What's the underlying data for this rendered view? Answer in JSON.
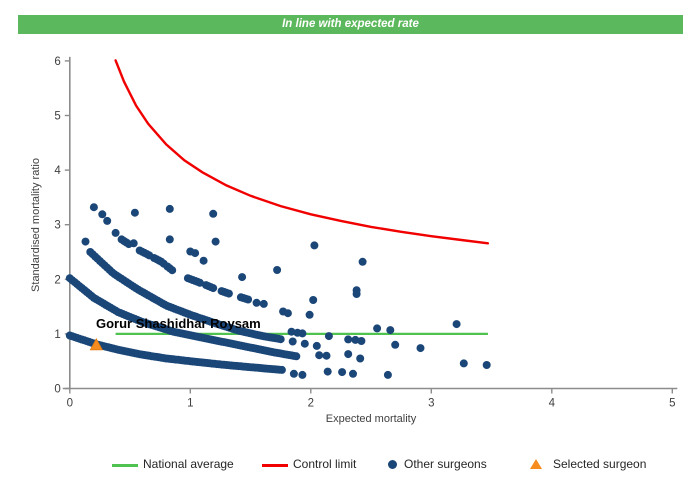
{
  "banner": {
    "text": "In line with expected rate"
  },
  "legend": {
    "items": [
      {
        "label": "National average",
        "swatch": "green-line"
      },
      {
        "label": "Control limit",
        "swatch": "red-line"
      },
      {
        "label": "Other surgeons",
        "swatch": "blue-dot"
      },
      {
        "label": "Selected surgeon",
        "swatch": "orange-triangle"
      }
    ]
  },
  "chart_data": {
    "type": "scatter",
    "title": "In line with expected rate",
    "xlabel": "Expected mortality",
    "ylabel": "Standardised mortality ratio",
    "xlim": [
      0,
      5
    ],
    "ylim": [
      0,
      6
    ],
    "xticks": [
      0,
      1,
      2,
      3,
      4,
      5
    ],
    "yticks": [
      0,
      1,
      2,
      3,
      4,
      5,
      6
    ],
    "grid": false,
    "legend_position": "bottom",
    "colors": {
      "banner_bg": "#5CB85C",
      "national_average": "#4FC24F",
      "control_limit": "#F10000",
      "other_surgeons": "#1B4678",
      "selected_surgeon": "#F68B1F",
      "axis": "#8C8C8C",
      "tick_text": "#3F3F3F"
    },
    "national_average": {
      "y": 1.0,
      "x_range": [
        0.38,
        3.47
      ]
    },
    "control_limit": {
      "x_range": [
        0.38,
        3.47
      ],
      "points": [
        [
          0.38,
          6.01
        ],
        [
          0.45,
          5.62
        ],
        [
          0.55,
          5.18
        ],
        [
          0.65,
          4.85
        ],
        [
          0.8,
          4.47
        ],
        [
          0.95,
          4.18
        ],
        [
          1.1,
          3.96
        ],
        [
          1.3,
          3.72
        ],
        [
          1.5,
          3.53
        ],
        [
          1.75,
          3.34
        ],
        [
          2.0,
          3.19
        ],
        [
          2.25,
          3.07
        ],
        [
          2.5,
          2.96
        ],
        [
          2.75,
          2.87
        ],
        [
          3.0,
          2.79
        ],
        [
          3.25,
          2.72
        ],
        [
          3.47,
          2.66
        ]
      ]
    },
    "selected_surgeon": {
      "name": "Gorur Shashidhar Roysam",
      "x": 0.22,
      "y": 0.8
    },
    "other_surgeons": {
      "bands": [
        {
          "anchors": [
            [
              0.17,
              2.5
            ],
            [
              0.36,
              2.11
            ],
            [
              0.56,
              1.82
            ],
            [
              0.8,
              1.52
            ],
            [
              1.0,
              1.35
            ],
            [
              1.2,
              1.2
            ],
            [
              1.4,
              1.06
            ],
            [
              1.6,
              0.96
            ],
            [
              1.76,
              0.9
            ]
          ],
          "runs": [
            [
              0.17,
              1.76
            ]
          ]
        },
        {
          "anchors": [
            [
              0.0,
              2.02
            ],
            [
              0.2,
              1.66
            ],
            [
              0.4,
              1.4
            ],
            [
              0.6,
              1.22
            ],
            [
              0.86,
              1.04
            ],
            [
              1.1,
              0.93
            ],
            [
              1.3,
              0.84
            ],
            [
              1.5,
              0.75
            ],
            [
              1.7,
              0.66
            ],
            [
              1.88,
              0.59
            ]
          ],
          "runs": [
            [
              0.0,
              1.88
            ]
          ]
        },
        {
          "anchors": [
            [
              0.0,
              0.97
            ],
            [
              0.22,
              0.81
            ],
            [
              0.4,
              0.71
            ],
            [
              0.6,
              0.62
            ],
            [
              0.8,
              0.55
            ],
            [
              1.0,
              0.5
            ],
            [
              1.25,
              0.44
            ],
            [
              1.5,
              0.39
            ],
            [
              1.76,
              0.34
            ]
          ],
          "runs": [
            [
              0.0,
              1.76
            ]
          ]
        },
        {
          "anchors": [
            [
              0.43,
              2.73
            ],
            [
              0.55,
              2.56
            ],
            [
              0.65,
              2.45
            ],
            [
              0.76,
              2.32
            ],
            [
              0.86,
              2.15
            ]
          ],
          "runs": [
            [
              0.43,
              0.49
            ],
            [
              0.58,
              0.66
            ],
            [
              0.7,
              0.78
            ],
            [
              0.81,
              0.86
            ]
          ]
        },
        {
          "anchors": [
            [
              0.98,
              2.02
            ],
            [
              1.1,
              1.92
            ],
            [
              1.2,
              1.83
            ],
            [
              1.33,
              1.73
            ],
            [
              1.48,
              1.63
            ]
          ],
          "runs": [
            [
              0.98,
              1.08
            ],
            [
              1.13,
              1.19
            ],
            [
              1.26,
              1.33
            ],
            [
              1.42,
              1.48
            ]
          ]
        }
      ],
      "points": [
        [
          0.13,
          2.69
        ],
        [
          0.2,
          3.32
        ],
        [
          0.27,
          3.19
        ],
        [
          0.31,
          3.07
        ],
        [
          0.38,
          2.85
        ],
        [
          0.54,
          3.22
        ],
        [
          0.83,
          3.29
        ],
        [
          1.19,
          3.2
        ],
        [
          0.53,
          2.66
        ],
        [
          0.83,
          2.73
        ],
        [
          1.21,
          2.69
        ],
        [
          1.0,
          2.51
        ],
        [
          1.04,
          2.48
        ],
        [
          1.11,
          2.34
        ],
        [
          1.43,
          2.04
        ],
        [
          1.72,
          2.17
        ],
        [
          2.03,
          2.62
        ],
        [
          2.43,
          2.32
        ],
        [
          2.38,
          1.8
        ],
        [
          1.55,
          1.57
        ],
        [
          1.61,
          1.55
        ],
        [
          1.77,
          1.41
        ],
        [
          1.81,
          1.38
        ],
        [
          2.02,
          1.62
        ],
        [
          2.38,
          1.73
        ],
        [
          1.99,
          1.35
        ],
        [
          1.84,
          1.04
        ],
        [
          1.89,
          1.02
        ],
        [
          1.93,
          1.01
        ],
        [
          2.15,
          0.96
        ],
        [
          2.31,
          0.9
        ],
        [
          2.37,
          0.89
        ],
        [
          2.42,
          0.87
        ],
        [
          2.55,
          1.1
        ],
        [
          2.66,
          1.07
        ],
        [
          3.21,
          1.18
        ],
        [
          2.7,
          0.8
        ],
        [
          2.91,
          0.74
        ],
        [
          2.07,
          0.61
        ],
        [
          2.13,
          0.6
        ],
        [
          2.31,
          0.63
        ],
        [
          2.41,
          0.55
        ],
        [
          1.86,
          0.27
        ],
        [
          1.93,
          0.25
        ],
        [
          2.14,
          0.31
        ],
        [
          2.26,
          0.3
        ],
        [
          2.35,
          0.27
        ],
        [
          2.64,
          0.25
        ],
        [
          3.27,
          0.46
        ],
        [
          3.46,
          0.43
        ],
        [
          1.85,
          0.86
        ],
        [
          1.95,
          0.82
        ],
        [
          2.05,
          0.78
        ]
      ]
    }
  }
}
